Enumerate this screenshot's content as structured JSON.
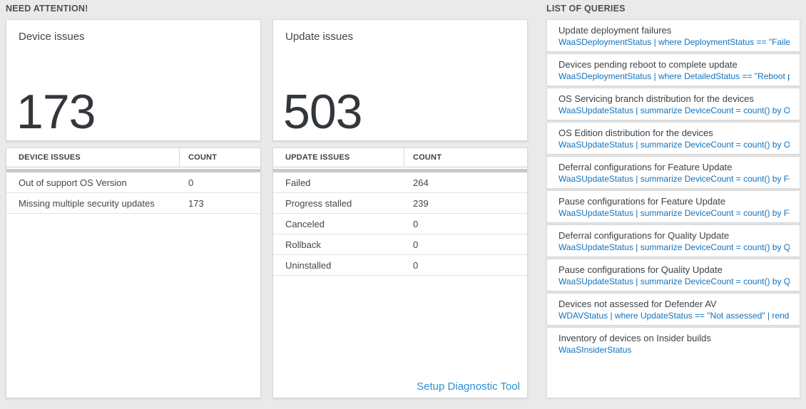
{
  "colors": {
    "background": "#eaeaea",
    "query_blue": "#1272bd",
    "link_blue": "#2e8fd2",
    "stat_number": "#33373c",
    "scrollbar_gray": "#c7cacc"
  },
  "sections": {
    "need_attention_label": "NEED ATTENTION!",
    "queries_label": "LIST OF QUERIES"
  },
  "device_card": {
    "title": "Device issues",
    "count": "173"
  },
  "device_table": {
    "headers": [
      "DEVICE ISSUES",
      "COUNT"
    ],
    "rows": [
      {
        "label": "Out of support OS Version",
        "count": "0"
      },
      {
        "label": "Missing multiple security updates",
        "count": "173"
      }
    ]
  },
  "update_card": {
    "title": "Update issues",
    "count": "503"
  },
  "update_table": {
    "headers": [
      "UPDATE ISSUES",
      "COUNT"
    ],
    "rows": [
      {
        "label": "Failed",
        "count": "264"
      },
      {
        "label": "Progress stalled",
        "count": "239"
      },
      {
        "label": "Canceled",
        "count": "0"
      },
      {
        "label": "Rollback",
        "count": "0"
      },
      {
        "label": "Uninstalled",
        "count": "0"
      }
    ],
    "link_label": "Setup Diagnostic Tool"
  },
  "queries": {
    "items": [
      {
        "title": "Update deployment failures",
        "query": "WaaSDeploymentStatus | where DeploymentStatus == \"Failed\" |..."
      },
      {
        "title": "Devices pending reboot to complete update",
        "query": "WaaSDeploymentStatus | where DetailedStatus == \"Reboot pend..."
      },
      {
        "title": "OS Servicing branch distribution for the devices",
        "query": "WaaSUpdateStatus | summarize DeviceCount = count() by OSSer..."
      },
      {
        "title": "OS Edition distribution for the devices",
        "query": "WaaSUpdateStatus | summarize DeviceCount = count() by OSEdit..."
      },
      {
        "title": "Deferral configurations for Feature Update",
        "query": "WaaSUpdateStatus | summarize DeviceCount = count() by Featur..."
      },
      {
        "title": "Pause configurations for Feature Update",
        "query": "WaaSUpdateStatus | summarize DeviceCount = count() by Featur..."
      },
      {
        "title": "Deferral configurations for Quality Update",
        "query": "WaaSUpdateStatus | summarize DeviceCount = count() by Qualit..."
      },
      {
        "title": "Pause configurations for Quality Update",
        "query": "WaaSUpdateStatus | summarize DeviceCount = count() by Qualit..."
      },
      {
        "title": "Devices not assessed for Defender AV",
        "query": "WDAVStatus | where UpdateStatus == \"Not assessed\" | render ta..."
      },
      {
        "title": "Inventory of devices on Insider builds",
        "query": "WaaSInsiderStatus"
      }
    ]
  }
}
